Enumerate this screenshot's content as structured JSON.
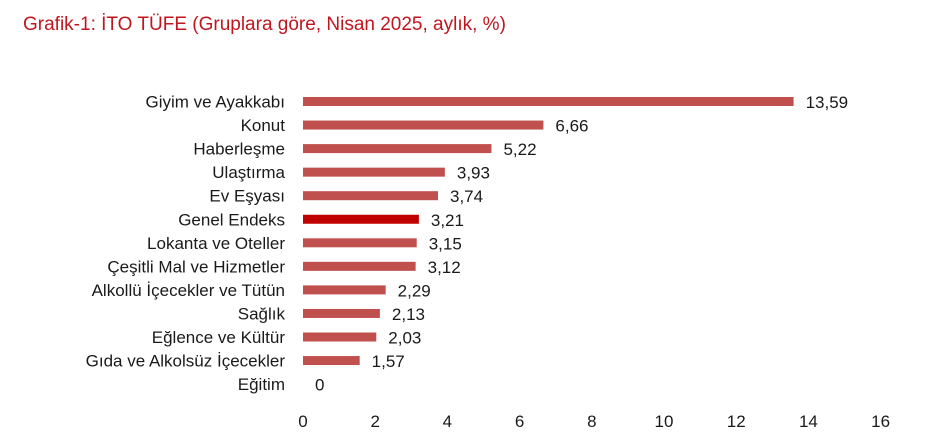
{
  "chart_data": {
    "type": "bar",
    "orientation": "horizontal",
    "title": "Grafik-1: İTO TÜFE (Gruplara göre, Nisan 2025, aylık, %)",
    "categories": [
      "Giyim ve Ayakkabı",
      "Konut",
      "Haberleşme",
      "Ulaştırma",
      "Ev Eşyası",
      "Genel Endeks",
      "Lokanta ve Oteller",
      "Çeşitli Mal ve Hizmetler",
      "Alkollü İçecekler ve Tütün",
      "Sağlık",
      "Eğlence ve Kültür",
      "Gıda ve Alkolsüz İçecekler",
      "Eğitim"
    ],
    "values": [
      13.59,
      6.66,
      5.22,
      3.93,
      3.74,
      3.21,
      3.15,
      3.12,
      2.29,
      2.13,
      2.03,
      1.57,
      0
    ],
    "value_labels": [
      "13,59",
      "6,66",
      "5,22",
      "3,93",
      "3,74",
      "3,21",
      "3,15",
      "3,12",
      "2,29",
      "2,13",
      "2,03",
      "1,57",
      "0"
    ],
    "highlight_category": "Genel Endeks",
    "xlim": [
      0,
      16
    ],
    "xticks": [
      0,
      2,
      4,
      6,
      8,
      10,
      12,
      14,
      16
    ],
    "xtick_labels": [
      "0",
      "2",
      "4",
      "6",
      "8",
      "10",
      "12",
      "14",
      "16"
    ],
    "xlabel": "",
    "ylabel": "",
    "grid": false,
    "legend": "none",
    "colors": {
      "bar": "#c0504d",
      "highlight_bar": "#c00000",
      "title": "#c0161e",
      "text": "#1a1a1a"
    }
  }
}
